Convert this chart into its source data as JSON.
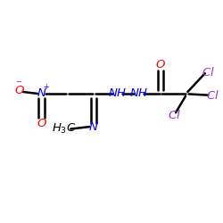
{
  "background_color": "#ffffff",
  "bond_color": "#000000",
  "bond_width": 1.8,
  "atom_colors": {
    "N": "#0000ff",
    "O": "#ff0000",
    "Cl": "#9932CC"
  },
  "figsize": [
    2.5,
    2.5
  ],
  "dpi": 100
}
